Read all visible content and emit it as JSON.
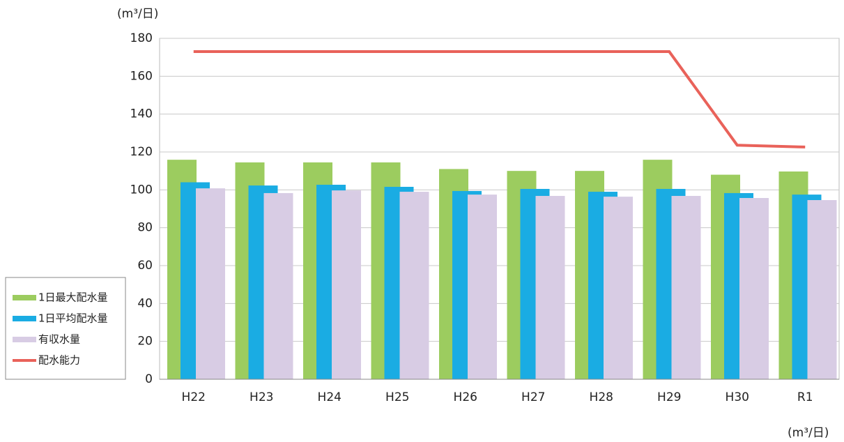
{
  "chart_data": {
    "type": "bar",
    "y_label": "(m³/日)",
    "unit_note": "(m³/日)",
    "categories": [
      "H22",
      "H23",
      "H24",
      "H25",
      "H26",
      "H27",
      "H28",
      "H29",
      "H30",
      "R1"
    ],
    "series": [
      {
        "name": "1日最大配水量",
        "color": "#9ccc5f",
        "values": [
          115.9,
          114.5,
          114.5,
          114.5,
          111,
          110,
          110,
          115.9,
          108,
          109.7
        ]
      },
      {
        "name": "1日平均配水量",
        "color": "#1aace3",
        "values": [
          104,
          102.3,
          102.7,
          101.6,
          99.4,
          100.5,
          99,
          100.5,
          98.3,
          97.5
        ]
      },
      {
        "name": "有収水量",
        "color": "#d8cce4",
        "values": [
          100.8,
          98.3,
          99.7,
          99,
          97.5,
          96.8,
          96.4,
          96.8,
          95.7,
          94.6
        ]
      },
      {
        "name": "配水能力",
        "color": "#e9625a",
        "type": "line",
        "values": [
          173,
          173,
          173,
          173,
          173,
          173,
          173,
          173,
          123.6,
          122.6
        ]
      }
    ],
    "ylim": [
      0,
      180
    ],
    "yticks": [
      0,
      20,
      40,
      60,
      80,
      100,
      120,
      140,
      160,
      180
    ],
    "grid": true,
    "legend": "left"
  }
}
